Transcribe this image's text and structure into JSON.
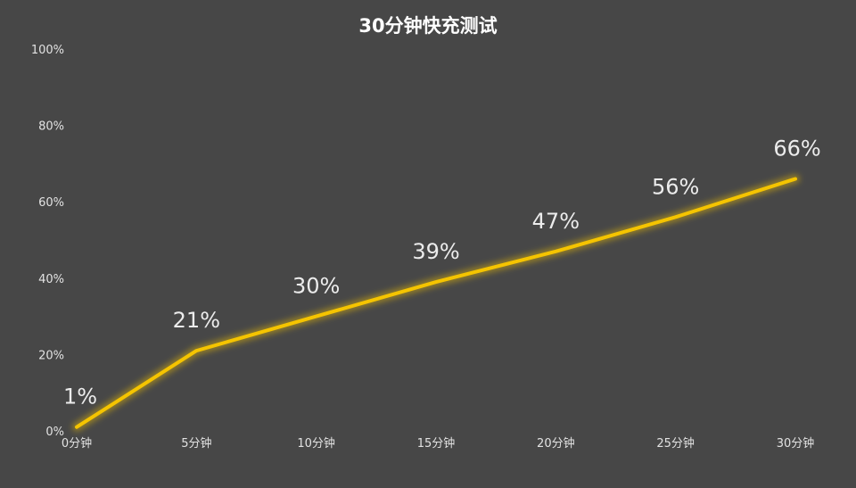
{
  "chart_data": {
    "type": "line",
    "title": "30分钟快充测试",
    "xlabel": "",
    "ylabel": "",
    "categories": [
      "0分钟",
      "5分钟",
      "10分钟",
      "15分钟",
      "20分钟",
      "25分钟",
      "30分钟"
    ],
    "y_ticks": [
      "0%",
      "20%",
      "40%",
      "60%",
      "80%",
      "100%"
    ],
    "ylim": [
      0,
      100
    ],
    "series": [
      {
        "values": [
          1,
          21,
          30,
          39,
          47,
          56,
          66
        ],
        "labels": [
          "1%",
          "21%",
          "30%",
          "39%",
          "47%",
          "56%",
          "66%"
        ],
        "color": "#f5c400"
      }
    ],
    "grid": false,
    "legend": "none",
    "background": "#474747"
  }
}
